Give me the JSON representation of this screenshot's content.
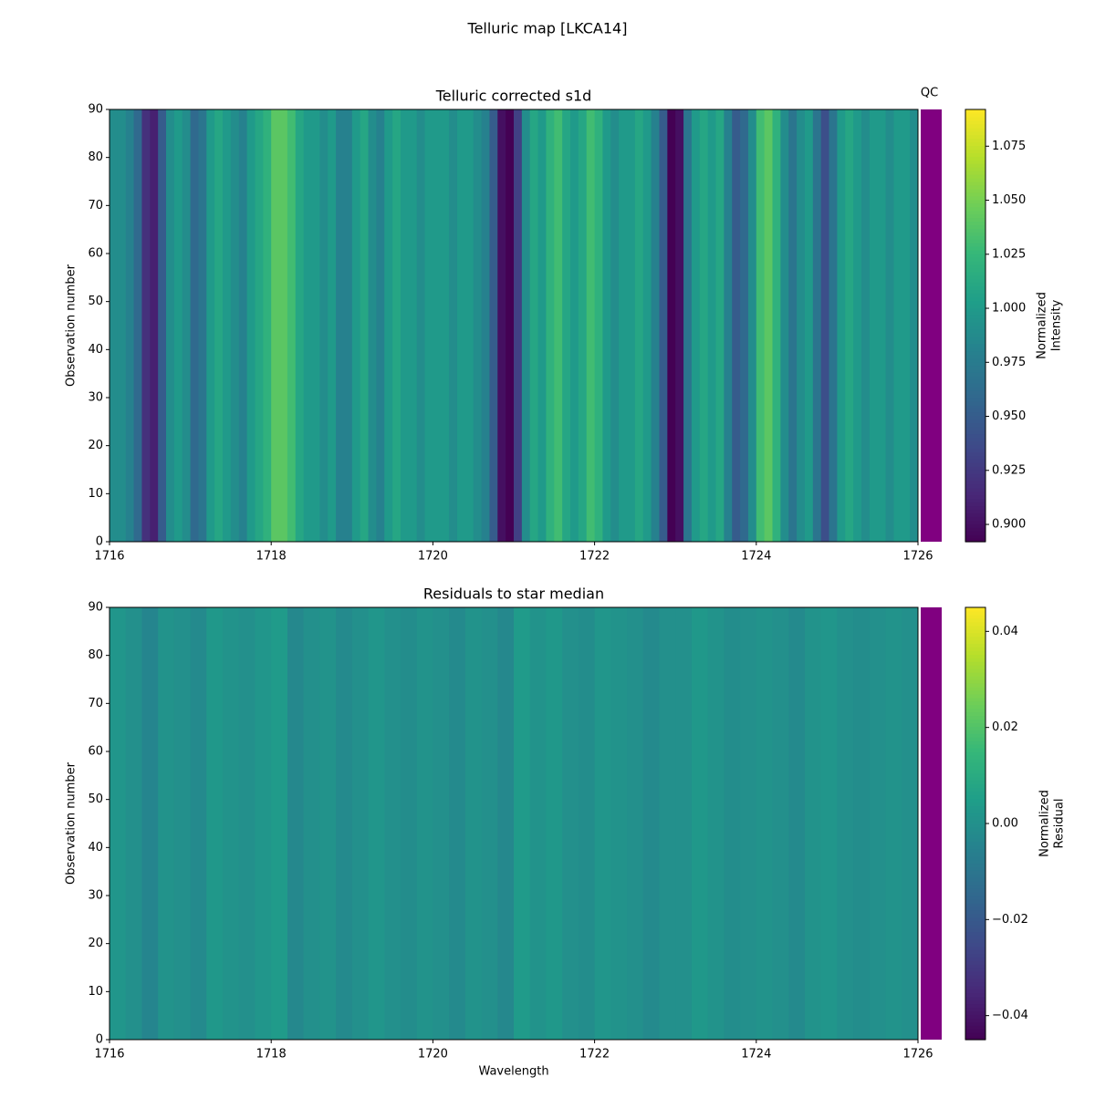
{
  "title": "Telluric map [LKCA14]",
  "chart_data": [
    {
      "type": "heatmap",
      "title": "Telluric corrected s1d",
      "ylabel": "Observation number",
      "colorbar_label": [
        "Normalized",
        "Intensity"
      ],
      "colormap": "viridis",
      "qc_label": "QC",
      "qc_color": "#800080",
      "xlim": [
        1716,
        1726
      ],
      "xticks": [
        1716,
        1718,
        1720,
        1722,
        1724,
        1726
      ],
      "ylim": [
        0,
        90
      ],
      "yticks": [
        0,
        10,
        20,
        30,
        40,
        50,
        60,
        70,
        80,
        90
      ],
      "clim": [
        0.892,
        1.092
      ],
      "cticks": [
        {
          "value": 0.9,
          "label": "0.900"
        },
        {
          "value": 0.925,
          "label": "0.925"
        },
        {
          "value": 0.95,
          "label": "0.950"
        },
        {
          "value": 0.975,
          "label": "0.975"
        },
        {
          "value": 1.0,
          "label": "1.000"
        },
        {
          "value": 1.025,
          "label": "1.025"
        },
        {
          "value": 1.05,
          "label": "1.050"
        },
        {
          "value": 1.075,
          "label": "1.075"
        }
      ],
      "x": [
        1716.05,
        1716.15,
        1716.25,
        1716.35,
        1716.45,
        1716.55,
        1716.65,
        1716.75,
        1716.85,
        1716.95,
        1717.05,
        1717.15,
        1717.25,
        1717.35,
        1717.45,
        1717.55,
        1717.65,
        1717.75,
        1717.85,
        1717.95,
        1718.05,
        1718.15,
        1718.25,
        1718.35,
        1718.45,
        1718.55,
        1718.65,
        1718.75,
        1718.85,
        1718.95,
        1719.05,
        1719.15,
        1719.25,
        1719.35,
        1719.45,
        1719.55,
        1719.65,
        1719.75,
        1719.85,
        1719.95,
        1720.05,
        1720.15,
        1720.25,
        1720.35,
        1720.45,
        1720.55,
        1720.65,
        1720.75,
        1720.85,
        1720.95,
        1721.05,
        1721.15,
        1721.25,
        1721.35,
        1721.45,
        1721.55,
        1721.65,
        1721.75,
        1721.85,
        1721.95,
        1722.05,
        1722.15,
        1722.25,
        1722.35,
        1722.45,
        1722.55,
        1722.65,
        1722.75,
        1722.85,
        1722.95,
        1723.05,
        1723.15,
        1723.25,
        1723.35,
        1723.45,
        1723.55,
        1723.65,
        1723.75,
        1723.85,
        1723.95,
        1724.05,
        1724.15,
        1724.25,
        1724.35,
        1724.45,
        1724.55,
        1724.65,
        1724.75,
        1724.85,
        1724.95,
        1725.05,
        1725.15,
        1725.25,
        1725.35,
        1725.45,
        1725.55,
        1725.65,
        1725.75,
        1725.85,
        1725.95
      ],
      "values": [
        0.99,
        0.99,
        0.98,
        0.96,
        0.92,
        0.91,
        0.95,
        0.99,
        1.0,
        0.99,
        0.96,
        0.97,
        1.0,
        1.01,
        1.0,
        0.99,
        0.98,
        1.0,
        1.01,
        1.02,
        1.04,
        1.04,
        1.03,
        1.01,
        1.0,
        1.0,
        0.99,
        1.0,
        0.98,
        0.98,
        1.0,
        1.01,
        0.99,
        0.98,
        1.0,
        1.01,
        1.0,
        1.0,
        0.99,
        1.0,
        1.0,
        1.0,
        0.99,
        1.0,
        1.0,
        0.99,
        0.98,
        0.95,
        0.9,
        0.89,
        0.93,
        0.99,
        1.01,
        1.0,
        1.02,
        1.03,
        1.01,
        1.0,
        1.01,
        1.03,
        1.02,
        1.0,
        0.99,
        1.0,
        1.0,
        1.01,
        1.0,
        0.98,
        0.95,
        0.89,
        0.9,
        0.97,
        1.0,
        1.01,
        1.0,
        1.01,
        0.98,
        0.95,
        0.96,
        0.99,
        1.03,
        1.04,
        1.02,
        0.99,
        0.97,
        0.99,
        1.0,
        0.97,
        0.94,
        0.97,
        1.0,
        1.01,
        1.0,
        0.99,
        1.0,
        1.0,
        0.99,
        1.0,
        1.0,
        0.99
      ]
    },
    {
      "type": "heatmap",
      "title": "Residuals to star median",
      "xlabel": "Wavelength",
      "ylabel": "Observation number",
      "colorbar_label": [
        "Normalized",
        "Residual"
      ],
      "colormap": "viridis",
      "qc_color": "#800080",
      "xlim": [
        1716,
        1726
      ],
      "xticks": [
        1716,
        1718,
        1720,
        1722,
        1724,
        1726
      ],
      "ylim": [
        0,
        90
      ],
      "yticks": [
        0,
        10,
        20,
        30,
        40,
        50,
        60,
        70,
        80,
        90
      ],
      "clim": [
        -0.045,
        0.045
      ],
      "cticks": [
        {
          "value": -0.04,
          "label": "−0.04"
        },
        {
          "value": -0.02,
          "label": "−0.02"
        },
        {
          "value": 0.0,
          "label": "0.00"
        },
        0.02,
        0.04
      ],
      "x": [
        1716.1,
        1716.3,
        1716.5,
        1716.7,
        1716.9,
        1717.1,
        1717.3,
        1717.5,
        1717.7,
        1717.9,
        1718.1,
        1718.3,
        1718.5,
        1718.7,
        1718.9,
        1719.1,
        1719.3,
        1719.5,
        1719.7,
        1719.9,
        1720.1,
        1720.3,
        1720.5,
        1720.7,
        1720.9,
        1721.1,
        1721.3,
        1721.5,
        1721.7,
        1721.9,
        1722.1,
        1722.3,
        1722.5,
        1722.7,
        1722.9,
        1723.1,
        1723.3,
        1723.5,
        1723.7,
        1723.9,
        1724.1,
        1724.3,
        1724.5,
        1724.7,
        1724.9,
        1725.1,
        1725.3,
        1725.5,
        1725.7,
        1725.9
      ],
      "values": [
        0.002,
        0.0,
        -0.004,
        0.001,
        0.0,
        -0.002,
        0.003,
        0.001,
        0.0,
        0.002,
        0.004,
        -0.003,
        0.0,
        0.001,
        -0.002,
        0.0,
        0.002,
        0.0,
        -0.001,
        0.001,
        0.0,
        -0.002,
        0.001,
        0.0,
        -0.003,
        0.004,
        0.001,
        0.003,
        0.0,
        -0.001,
        0.002,
        0.001,
        0.0,
        -0.002,
        0.0,
        0.0,
        0.003,
        0.001,
        -0.001,
        0.0,
        0.001,
        0.0,
        -0.002,
        0.001,
        0.002,
        0.0,
        -0.001,
        0.0,
        0.001,
        0.0
      ]
    }
  ]
}
